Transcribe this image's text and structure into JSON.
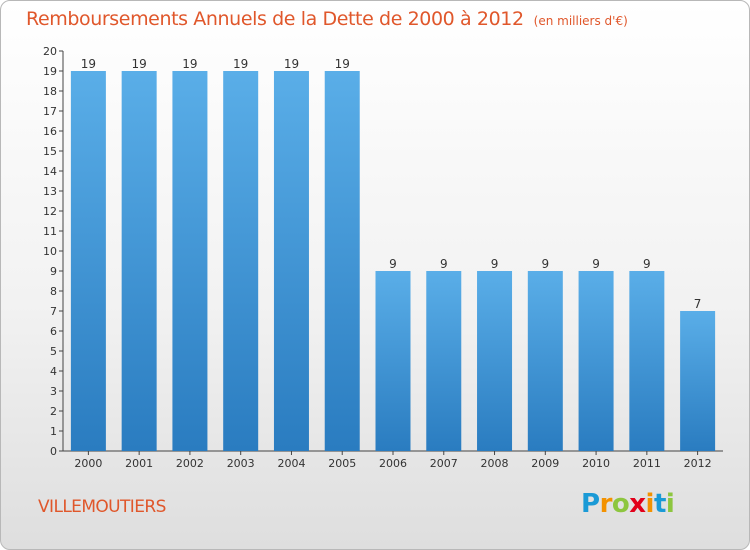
{
  "chart_data": {
    "type": "bar",
    "title": "Remboursements Annuels de la Dette de 2000 à 2012",
    "subtitle": "(en milliers d'€)",
    "categories": [
      "2000",
      "2001",
      "2002",
      "2003",
      "2004",
      "2005",
      "2006",
      "2007",
      "2008",
      "2009",
      "2010",
      "2011",
      "2012"
    ],
    "values": [
      19,
      19,
      19,
      19,
      19,
      19,
      9,
      9,
      9,
      9,
      9,
      9,
      7
    ],
    "ylim": [
      0,
      20
    ],
    "yticks": [
      0,
      1,
      2,
      3,
      4,
      5,
      6,
      7,
      8,
      9,
      10,
      11,
      12,
      13,
      14,
      15,
      16,
      17,
      18,
      19,
      20
    ],
    "data_labels": true,
    "grid": false,
    "bar_color_top": "#5aaee8",
    "bar_color_bottom": "#2a7cc0"
  },
  "location": "VILLEMOUTIERS",
  "logo": {
    "letters": [
      "P",
      "r",
      "o",
      "x",
      "i",
      "t",
      "i"
    ],
    "colors": [
      "#1a9ad6",
      "#f39200",
      "#8dc63f",
      "#e2001a",
      "#f39200",
      "#1a9ad6",
      "#8dc63f"
    ]
  }
}
